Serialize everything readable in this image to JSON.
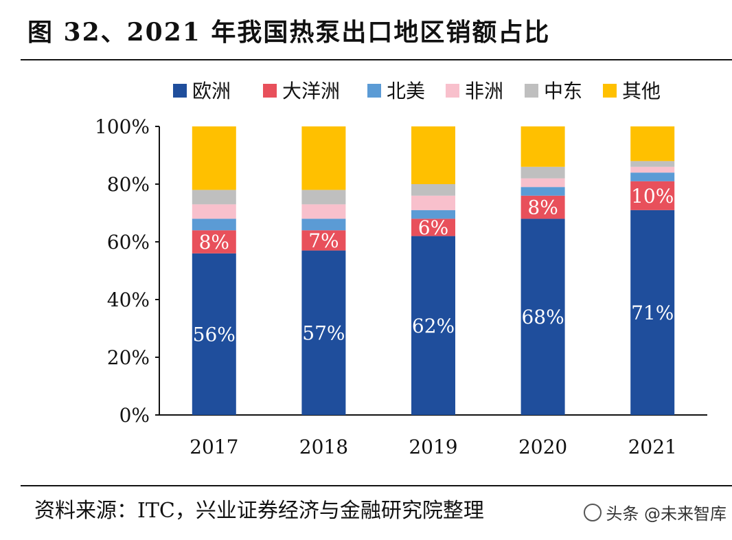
{
  "title": "图 32、2021 年我国热泵出口地区销额占比",
  "source": "资料来源：ITC，兴业证券经济与金融研究院整理",
  "watermark": "头条 @未来智库",
  "chart_data": {
    "type": "bar",
    "stacked": true,
    "categories": [
      "2017",
      "2018",
      "2019",
      "2020",
      "2021"
    ],
    "ylim": [
      0,
      100
    ],
    "yticks": [
      "0%",
      "20%",
      "40%",
      "60%",
      "80%",
      "100%"
    ],
    "legend_position": "top",
    "series": [
      {
        "name": "欧洲",
        "color": "#1f4e9c",
        "values": [
          56,
          57,
          62,
          68,
          71
        ],
        "labels": [
          "56%",
          "57%",
          "62%",
          "68%",
          "71%"
        ]
      },
      {
        "name": "大洋洲",
        "color": "#e8505b",
        "values": [
          8,
          7,
          6,
          8,
          10
        ],
        "labels": [
          "8%",
          "7%",
          "6%",
          "8%",
          "10%"
        ]
      },
      {
        "name": "北美",
        "color": "#5b9bd5",
        "values": [
          4,
          4,
          3,
          3,
          3
        ]
      },
      {
        "name": "非洲",
        "color": "#f8c0cc",
        "values": [
          5,
          5,
          5,
          3,
          2
        ]
      },
      {
        "name": "中东",
        "color": "#bfbfbf",
        "values": [
          5,
          5,
          4,
          4,
          2
        ]
      },
      {
        "name": "其他",
        "color": "#ffc000",
        "values": [
          22,
          22,
          20,
          14,
          12
        ]
      }
    ]
  }
}
